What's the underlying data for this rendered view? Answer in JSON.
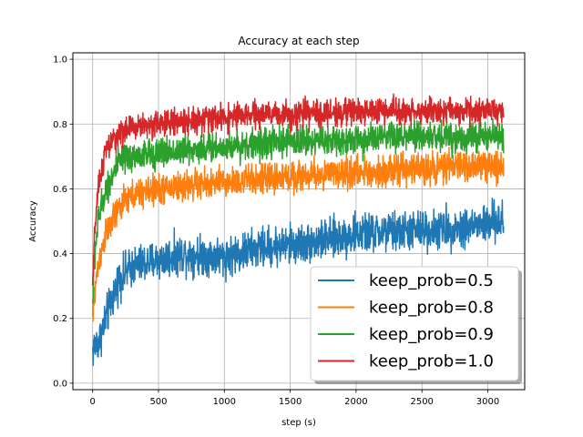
{
  "chart_data": {
    "type": "line",
    "title": "Accuracy at each step",
    "xlabel": "step (s)",
    "ylabel": "Accuracy",
    "xlim": [
      -150,
      3280
    ],
    "ylim": [
      -0.02,
      1.02
    ],
    "xticks": [
      0,
      500,
      1000,
      1500,
      2000,
      2500,
      3000
    ],
    "yticks": [
      0.0,
      0.2,
      0.4,
      0.6,
      0.8,
      1.0
    ],
    "grid": true,
    "legend_position": "lower-right",
    "series": [
      {
        "name": "keep_prob=0.5",
        "color": "#1f77b4",
        "x": [
          0,
          20,
          50,
          100,
          200,
          300,
          500,
          700,
          1000,
          1300,
          1600,
          2000,
          2400,
          2800,
          3120
        ],
        "y": [
          0.1,
          0.12,
          0.13,
          0.2,
          0.32,
          0.36,
          0.38,
          0.4,
          0.39,
          0.42,
          0.43,
          0.46,
          0.47,
          0.48,
          0.5
        ],
        "spread": 0.09
      },
      {
        "name": "keep_prob=0.8",
        "color": "#ff7f0e",
        "x": [
          0,
          20,
          50,
          100,
          200,
          300,
          500,
          700,
          1000,
          1300,
          1600,
          2000,
          2400,
          2800,
          3120
        ],
        "y": [
          0.2,
          0.3,
          0.38,
          0.46,
          0.54,
          0.58,
          0.6,
          0.61,
          0.62,
          0.63,
          0.64,
          0.65,
          0.66,
          0.67,
          0.67
        ],
        "spread": 0.07
      },
      {
        "name": "keep_prob=0.9",
        "color": "#2ca02c",
        "x": [
          0,
          20,
          50,
          100,
          200,
          300,
          500,
          700,
          1000,
          1300,
          1600,
          2000,
          2400,
          2800,
          3120
        ],
        "y": [
          0.25,
          0.42,
          0.52,
          0.6,
          0.68,
          0.7,
          0.71,
          0.72,
          0.73,
          0.74,
          0.75,
          0.75,
          0.76,
          0.76,
          0.76
        ],
        "spread": 0.07
      },
      {
        "name": "keep_prob=1.0",
        "color": "#d62728",
        "x": [
          0,
          20,
          50,
          100,
          200,
          300,
          500,
          700,
          1000,
          1300,
          1600,
          2000,
          2400,
          2800,
          3120
        ],
        "y": [
          0.3,
          0.5,
          0.62,
          0.72,
          0.77,
          0.79,
          0.8,
          0.81,
          0.82,
          0.83,
          0.83,
          0.84,
          0.84,
          0.84,
          0.84
        ],
        "spread": 0.06
      }
    ]
  }
}
